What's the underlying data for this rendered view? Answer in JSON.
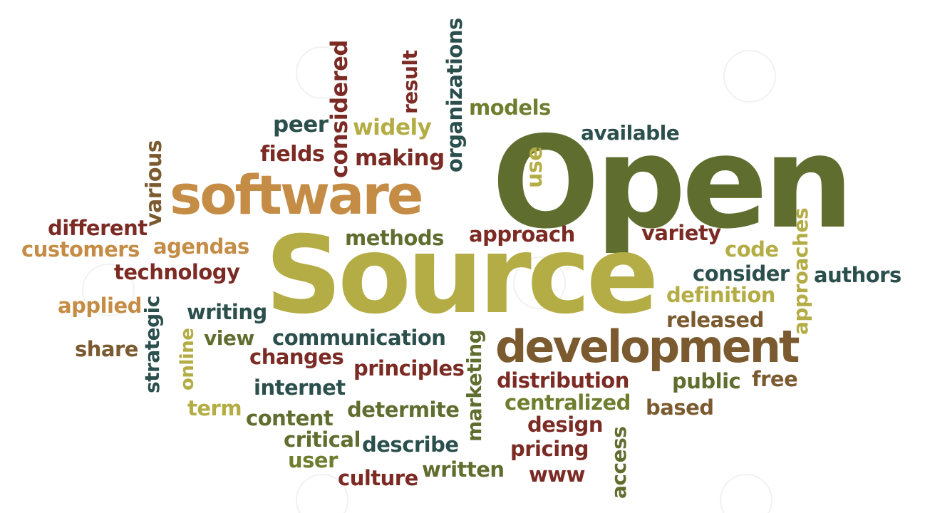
{
  "palette": {
    "olive_dark": "#5f6d2e",
    "olive_light": "#b4ad45",
    "tan": "#c48c45",
    "brown": "#7a5a2e",
    "maroon": "#7b2b24",
    "teal": "#2b4f4c",
    "green": "#6f7d2e"
  },
  "words": [
    {
      "id": "open",
      "text": "Open"
    },
    {
      "id": "source",
      "text": "Source"
    },
    {
      "id": "software",
      "text": "software"
    },
    {
      "id": "development",
      "text": "development"
    },
    {
      "id": "models",
      "text": "models"
    },
    {
      "id": "available",
      "text": "available"
    },
    {
      "id": "peer",
      "text": "peer"
    },
    {
      "id": "widely",
      "text": "widely"
    },
    {
      "id": "fields",
      "text": "fields"
    },
    {
      "id": "making",
      "text": "making"
    },
    {
      "id": "considered",
      "text": "considered"
    },
    {
      "id": "result",
      "text": "result"
    },
    {
      "id": "organizations",
      "text": "organizations"
    },
    {
      "id": "use",
      "text": "use"
    },
    {
      "id": "various",
      "text": "various"
    },
    {
      "id": "different",
      "text": "different"
    },
    {
      "id": "customers",
      "text": "customers"
    },
    {
      "id": "agendas",
      "text": "agendas"
    },
    {
      "id": "technology",
      "text": "technology"
    },
    {
      "id": "methods",
      "text": "methods"
    },
    {
      "id": "approach",
      "text": "approach"
    },
    {
      "id": "variety",
      "text": "variety"
    },
    {
      "id": "code",
      "text": "code"
    },
    {
      "id": "approaches",
      "text": "approaches"
    },
    {
      "id": "consider",
      "text": "consider"
    },
    {
      "id": "authors",
      "text": "authors"
    },
    {
      "id": "definition",
      "text": "definition"
    },
    {
      "id": "released",
      "text": "released"
    },
    {
      "id": "applied",
      "text": "applied"
    },
    {
      "id": "strategic",
      "text": "strategic"
    },
    {
      "id": "writing",
      "text": "writing"
    },
    {
      "id": "view",
      "text": "view"
    },
    {
      "id": "online",
      "text": "online"
    },
    {
      "id": "share",
      "text": "share"
    },
    {
      "id": "communication",
      "text": "communication"
    },
    {
      "id": "changes",
      "text": "changes"
    },
    {
      "id": "principles",
      "text": "principles"
    },
    {
      "id": "marketing",
      "text": "marketing"
    },
    {
      "id": "distribution",
      "text": "distribution"
    },
    {
      "id": "public",
      "text": "public"
    },
    {
      "id": "free",
      "text": "free"
    },
    {
      "id": "internet",
      "text": "internet"
    },
    {
      "id": "term",
      "text": "term"
    },
    {
      "id": "content",
      "text": "content"
    },
    {
      "id": "determite",
      "text": "determite"
    },
    {
      "id": "centralized",
      "text": "centralized"
    },
    {
      "id": "based",
      "text": "based"
    },
    {
      "id": "design",
      "text": "design"
    },
    {
      "id": "critical",
      "text": "critical"
    },
    {
      "id": "describe",
      "text": "describe"
    },
    {
      "id": "pricing",
      "text": "pricing"
    },
    {
      "id": "access",
      "text": "access"
    },
    {
      "id": "user",
      "text": "user"
    },
    {
      "id": "culture",
      "text": "culture"
    },
    {
      "id": "written",
      "text": "written"
    },
    {
      "id": "www",
      "text": "www"
    }
  ]
}
